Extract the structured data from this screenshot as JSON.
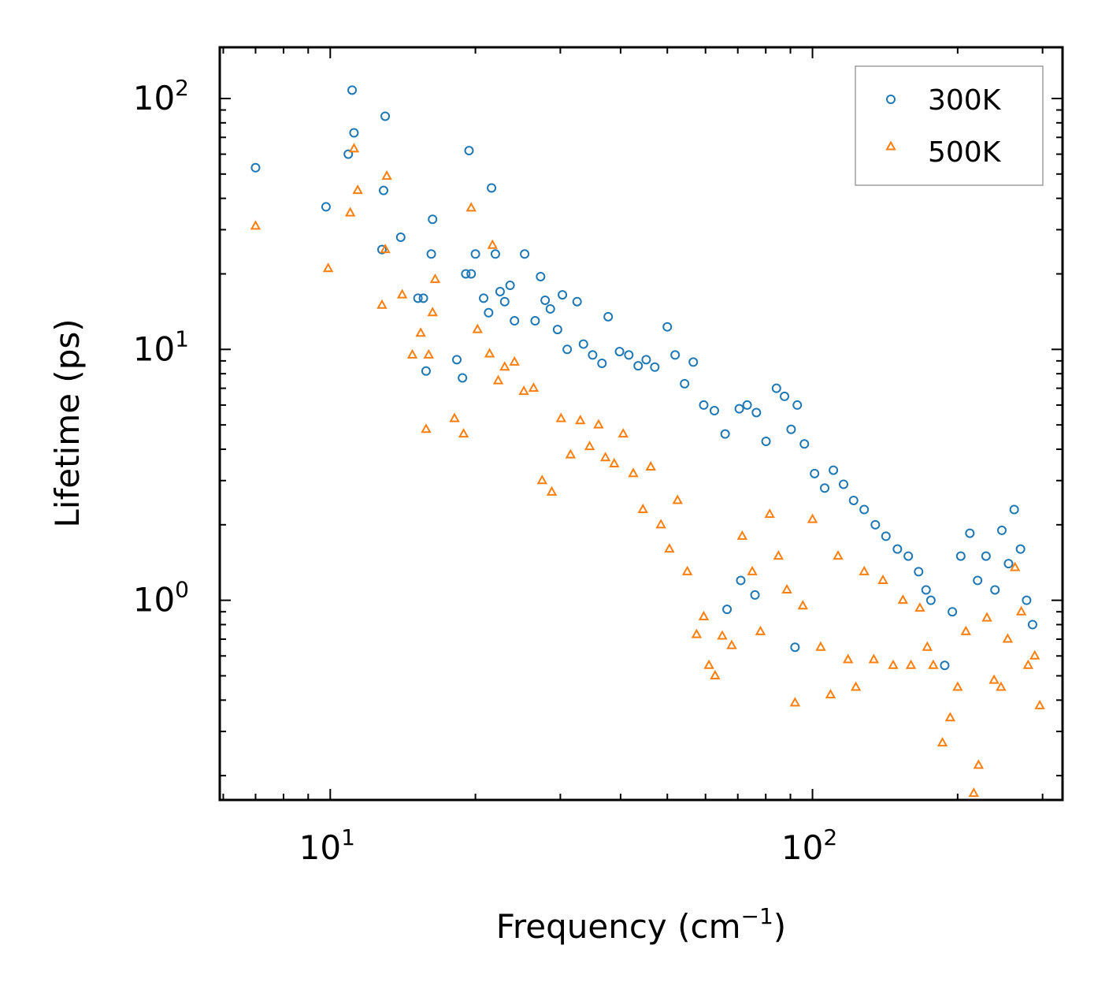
{
  "chart_data": {
    "type": "scatter",
    "x_scale": "log",
    "y_scale": "log",
    "xlim": [
      5.9,
      330
    ],
    "ylim": [
      0.16,
      160
    ],
    "xlabel": {
      "base": "Frequency (cm",
      "sup": "−1",
      "tail": ")"
    },
    "ylabel": "Lifetime (ps)",
    "x_major_ticks": [
      {
        "value": 10,
        "base": "10",
        "exp": "1"
      },
      {
        "value": 100,
        "base": "10",
        "exp": "2"
      }
    ],
    "y_major_ticks": [
      {
        "value": 1,
        "base": "10",
        "exp": "0"
      },
      {
        "value": 10,
        "base": "10",
        "exp": "1"
      },
      {
        "value": 100,
        "base": "10",
        "exp": "2"
      }
    ],
    "legend": {
      "position": "top-right",
      "entries": [
        "300K",
        "500K"
      ]
    },
    "series": [
      {
        "name": "300K",
        "marker": "circle",
        "color": "#1f77b4",
        "points": [
          [
            7.0,
            53
          ],
          [
            9.8,
            37
          ],
          [
            10.9,
            60
          ],
          [
            11.1,
            108
          ],
          [
            11.2,
            73
          ],
          [
            12.8,
            25
          ],
          [
            12.9,
            43
          ],
          [
            13.0,
            85
          ],
          [
            14.0,
            28
          ],
          [
            15.2,
            16
          ],
          [
            15.6,
            16
          ],
          [
            15.8,
            8.2
          ],
          [
            16.2,
            24
          ],
          [
            16.3,
            33
          ],
          [
            18.3,
            9.1
          ],
          [
            18.8,
            7.7
          ],
          [
            19.1,
            20
          ],
          [
            19.6,
            20
          ],
          [
            19.4,
            62
          ],
          [
            20.0,
            24
          ],
          [
            20.8,
            16
          ],
          [
            21.3,
            14
          ],
          [
            21.6,
            44
          ],
          [
            22.0,
            24
          ],
          [
            22.5,
            17
          ],
          [
            23.0,
            15.5
          ],
          [
            23.6,
            18
          ],
          [
            24.1,
            13
          ],
          [
            25.3,
            24
          ],
          [
            26.6,
            13
          ],
          [
            27.3,
            19.5
          ],
          [
            27.9,
            15.7
          ],
          [
            28.6,
            14.5
          ],
          [
            29.6,
            12
          ],
          [
            30.3,
            16.5
          ],
          [
            31.0,
            10
          ],
          [
            32.5,
            15.5
          ],
          [
            33.5,
            10.5
          ],
          [
            35.0,
            9.5
          ],
          [
            36.6,
            8.8
          ],
          [
            37.7,
            13.5
          ],
          [
            39.8,
            9.8
          ],
          [
            41.6,
            9.5
          ],
          [
            43.5,
            8.6
          ],
          [
            45.2,
            9.1
          ],
          [
            47.1,
            8.5
          ],
          [
            50.0,
            12.3
          ],
          [
            51.9,
            9.5
          ],
          [
            54.3,
            7.3
          ],
          [
            56.6,
            8.9
          ],
          [
            59.5,
            6.0
          ],
          [
            62.6,
            5.7
          ],
          [
            65.9,
            4.6
          ],
          [
            70.5,
            5.8
          ],
          [
            73.2,
            6.0
          ],
          [
            76.5,
            5.6
          ],
          [
            80.1,
            4.3
          ],
          [
            84.2,
            7.0
          ],
          [
            87.5,
            6.5
          ],
          [
            90.3,
            4.8
          ],
          [
            93.0,
            6.0
          ],
          [
            96.2,
            4.2
          ],
          [
            101.0,
            3.2
          ],
          [
            106.0,
            2.8
          ],
          [
            110.5,
            3.3
          ],
          [
            116.0,
            2.9
          ],
          [
            121.7,
            2.5
          ],
          [
            128.0,
            2.3
          ],
          [
            135.0,
            2.0
          ],
          [
            142.0,
            1.8
          ],
          [
            150.0,
            1.6
          ],
          [
            158.0,
            1.5
          ],
          [
            166.0,
            1.3
          ],
          [
            172.0,
            1.1
          ],
          [
            176.0,
            1.0
          ],
          [
            188.0,
            0.55
          ],
          [
            195.0,
            0.9
          ],
          [
            203.0,
            1.5
          ],
          [
            212.0,
            1.85
          ],
          [
            220.0,
            1.2
          ],
          [
            229.0,
            1.5
          ],
          [
            239.0,
            1.1
          ],
          [
            247.0,
            1.9
          ],
          [
            255.0,
            1.4
          ],
          [
            262.0,
            2.3
          ],
          [
            270.0,
            1.6
          ],
          [
            278.0,
            1.0
          ],
          [
            286.0,
            0.8
          ],
          [
            66.5,
            0.92
          ],
          [
            71.0,
            1.2
          ],
          [
            76.0,
            1.05
          ],
          [
            92.0,
            0.65
          ]
        ]
      },
      {
        "name": "500K",
        "marker": "triangle",
        "color": "#ff7f0e",
        "points": [
          [
            7.0,
            31
          ],
          [
            9.9,
            21
          ],
          [
            11.0,
            35
          ],
          [
            11.2,
            63
          ],
          [
            11.4,
            43
          ],
          [
            12.8,
            15
          ],
          [
            13.0,
            25
          ],
          [
            13.1,
            49
          ],
          [
            14.1,
            16.5
          ],
          [
            14.8,
            9.5
          ],
          [
            15.4,
            11.6
          ],
          [
            15.8,
            4.8
          ],
          [
            16.0,
            9.5
          ],
          [
            16.3,
            14
          ],
          [
            16.5,
            19
          ],
          [
            18.1,
            5.3
          ],
          [
            18.9,
            4.6
          ],
          [
            19.6,
            36.6
          ],
          [
            20.2,
            12
          ],
          [
            21.4,
            9.6
          ],
          [
            21.7,
            26
          ],
          [
            22.3,
            7.5
          ],
          [
            23.0,
            8.5
          ],
          [
            24.1,
            8.9
          ],
          [
            25.2,
            6.8
          ],
          [
            26.4,
            7.0
          ],
          [
            27.5,
            3.0
          ],
          [
            28.8,
            2.7
          ],
          [
            30.1,
            5.3
          ],
          [
            31.5,
            3.8
          ],
          [
            33.0,
            5.2
          ],
          [
            34.5,
            4.1
          ],
          [
            36.0,
            5.0
          ],
          [
            37.2,
            3.7
          ],
          [
            38.8,
            3.5
          ],
          [
            40.5,
            4.6
          ],
          [
            42.5,
            3.2
          ],
          [
            44.5,
            2.3
          ],
          [
            46.2,
            3.4
          ],
          [
            48.5,
            2.0
          ],
          [
            50.5,
            1.6
          ],
          [
            52.5,
            2.5
          ],
          [
            55.0,
            1.3
          ],
          [
            57.5,
            0.73
          ],
          [
            59.5,
            0.86
          ],
          [
            61.0,
            0.55
          ],
          [
            62.8,
            0.5
          ],
          [
            65.0,
            0.72
          ],
          [
            68.0,
            0.66
          ],
          [
            71.5,
            1.8
          ],
          [
            75.0,
            1.3
          ],
          [
            78.0,
            0.75
          ],
          [
            81.5,
            2.2
          ],
          [
            85.0,
            1.5
          ],
          [
            88.5,
            1.1
          ],
          [
            92.0,
            0.39
          ],
          [
            95.5,
            0.95
          ],
          [
            100.0,
            2.1
          ],
          [
            104.0,
            0.65
          ],
          [
            109.0,
            0.42
          ],
          [
            113.0,
            1.5
          ],
          [
            118.5,
            0.58
          ],
          [
            123.0,
            0.45
          ],
          [
            128.0,
            1.3
          ],
          [
            134.0,
            0.58
          ],
          [
            140.0,
            1.2
          ],
          [
            147.0,
            0.55
          ],
          [
            154.0,
            1.0
          ],
          [
            160.0,
            0.55
          ],
          [
            167.0,
            0.93
          ],
          [
            173.0,
            0.65
          ],
          [
            178.0,
            0.55
          ],
          [
            186.0,
            0.27
          ],
          [
            193.0,
            0.34
          ],
          [
            200.0,
            0.45
          ],
          [
            208.0,
            0.75
          ],
          [
            216.0,
            0.17
          ],
          [
            221.0,
            0.22
          ],
          [
            230.0,
            0.85
          ],
          [
            238.0,
            0.48
          ],
          [
            246.0,
            0.45
          ],
          [
            254.0,
            0.7
          ],
          [
            263.0,
            1.35
          ],
          [
            271.0,
            0.9
          ],
          [
            280.0,
            0.55
          ],
          [
            289.0,
            0.6
          ],
          [
            296.0,
            0.38
          ]
        ]
      }
    ]
  }
}
